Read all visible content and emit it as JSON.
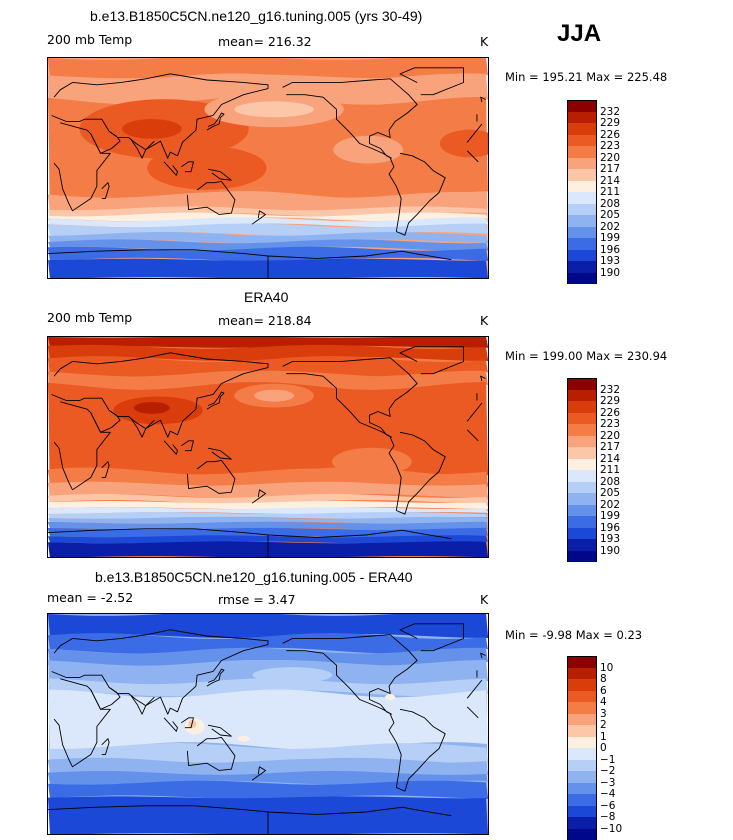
{
  "season": "JJA",
  "panels": [
    {
      "title": "b.e13.B1850C5CN.ne120_g16.tuning.005 (yrs 30-49)",
      "variable": "200 mb Temp",
      "stat": "mean= 216.32",
      "units": "K",
      "minmax": "Min = 195.21 Max = 225.48",
      "levels": [
        "232",
        "229",
        "226",
        "223",
        "220",
        "217",
        "214",
        "211",
        "208",
        "205",
        "202",
        "199",
        "196",
        "193",
        "190"
      ]
    },
    {
      "title": "ERA40",
      "variable": "200 mb Temp",
      "stat": "mean= 218.84",
      "units": "K",
      "minmax": "Min = 199.00 Max = 230.94",
      "levels": [
        "232",
        "229",
        "226",
        "223",
        "220",
        "217",
        "214",
        "211",
        "208",
        "205",
        "202",
        "199",
        "196",
        "193",
        "190"
      ]
    },
    {
      "title": "b.e13.B1850C5CN.ne120_g16.tuning.005 - ERA40",
      "variable": "mean =   -2.52",
      "stat": "rmse =    3.47",
      "units": "K",
      "minmax": "Min =  -9.98 Max =   0.23",
      "levels": [
        "10",
        "8",
        "6",
        "4",
        "3",
        "2",
        "1",
        "0",
        "−1",
        "−2",
        "−3",
        "−4",
        "−6",
        "−8",
        "−10"
      ]
    }
  ],
  "chart_data": {
    "type": "heatmap",
    "title": "JJA",
    "colormap": [
      "#8b0000",
      "#b81e00",
      "#d93d0b",
      "#ec5a24",
      "#f47c47",
      "#f9a37d",
      "#fcc6a8",
      "#fdf0e1",
      "#dbe7fa",
      "#b6cff6",
      "#8fb2f0",
      "#6491ea",
      "#3b6ce6",
      "#1b48d6",
      "#0a1ea8",
      "#00088a"
    ],
    "panels": [
      {
        "name": "model 200 mb Temp",
        "mean": 216.32,
        "min": 195.21,
        "max": 225.48,
        "units": "K",
        "contour_levels": [
          190,
          193,
          196,
          199,
          202,
          205,
          208,
          211,
          214,
          217,
          220,
          223,
          226,
          229,
          232
        ]
      },
      {
        "name": "ERA40 200 mb Temp",
        "mean": 218.84,
        "min": 199.0,
        "max": 230.94,
        "units": "K",
        "contour_levels": [
          190,
          193,
          196,
          199,
          202,
          205,
          208,
          211,
          214,
          217,
          220,
          223,
          226,
          229,
          232
        ]
      },
      {
        "name": "model - ERA40",
        "mean": -2.52,
        "rmse": 3.47,
        "min": -9.98,
        "max": 0.23,
        "units": "K",
        "contour_levels": [
          -10,
          -8,
          -6,
          -4,
          -3,
          -2,
          -1,
          0,
          1,
          2,
          3,
          4,
          6,
          8,
          10
        ]
      }
    ]
  }
}
